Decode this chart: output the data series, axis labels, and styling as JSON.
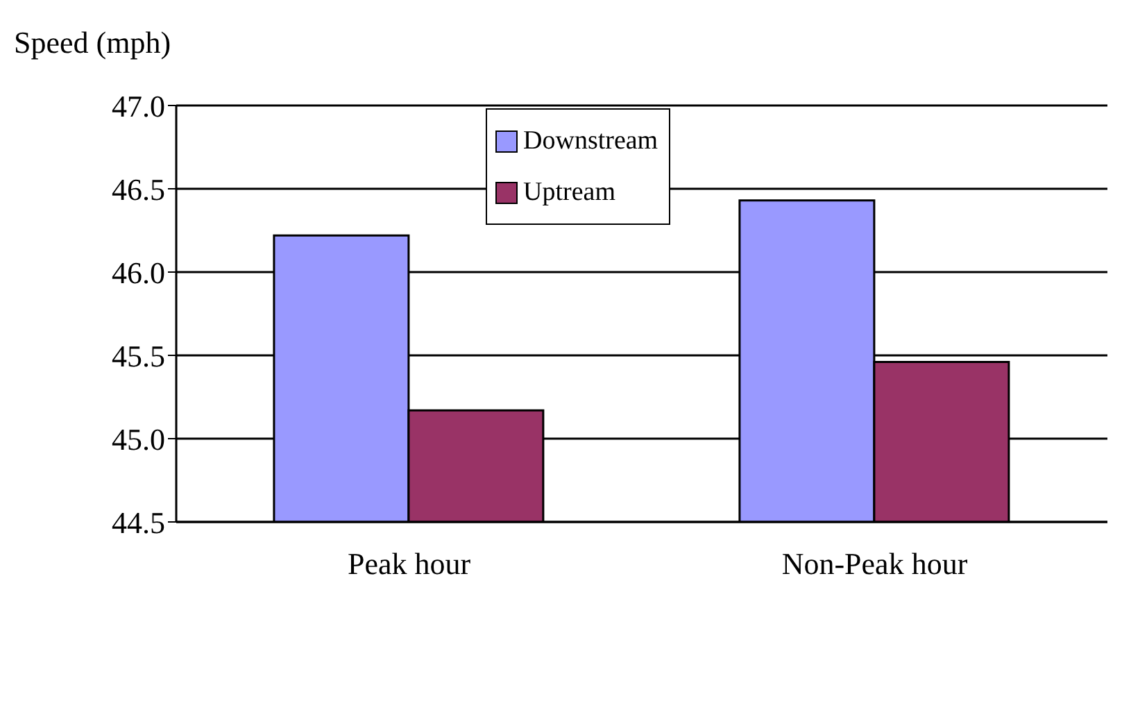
{
  "chart_data": {
    "type": "bar",
    "ylabel": "Speed (mph)",
    "categories": [
      "Peak hour",
      "Non-Peak hour"
    ],
    "series": [
      {
        "name": "Downstream",
        "color": "#9999ff",
        "values": [
          46.22,
          46.43
        ]
      },
      {
        "name": "Uptream",
        "color": "#993366",
        "values": [
          45.17,
          45.46
        ]
      }
    ],
    "ylim": [
      44.5,
      47.0
    ],
    "yticks": [
      {
        "value": 44.5,
        "label": "44.5"
      },
      {
        "value": 45.0,
        "label": "45.0"
      },
      {
        "value": 45.5,
        "label": "45.5"
      },
      {
        "value": 46.0,
        "label": "46.0"
      },
      {
        "value": 46.5,
        "label": "46.5"
      },
      {
        "value": 47.0,
        "label": "47.0"
      }
    ],
    "grid": "y",
    "legend": "top"
  }
}
